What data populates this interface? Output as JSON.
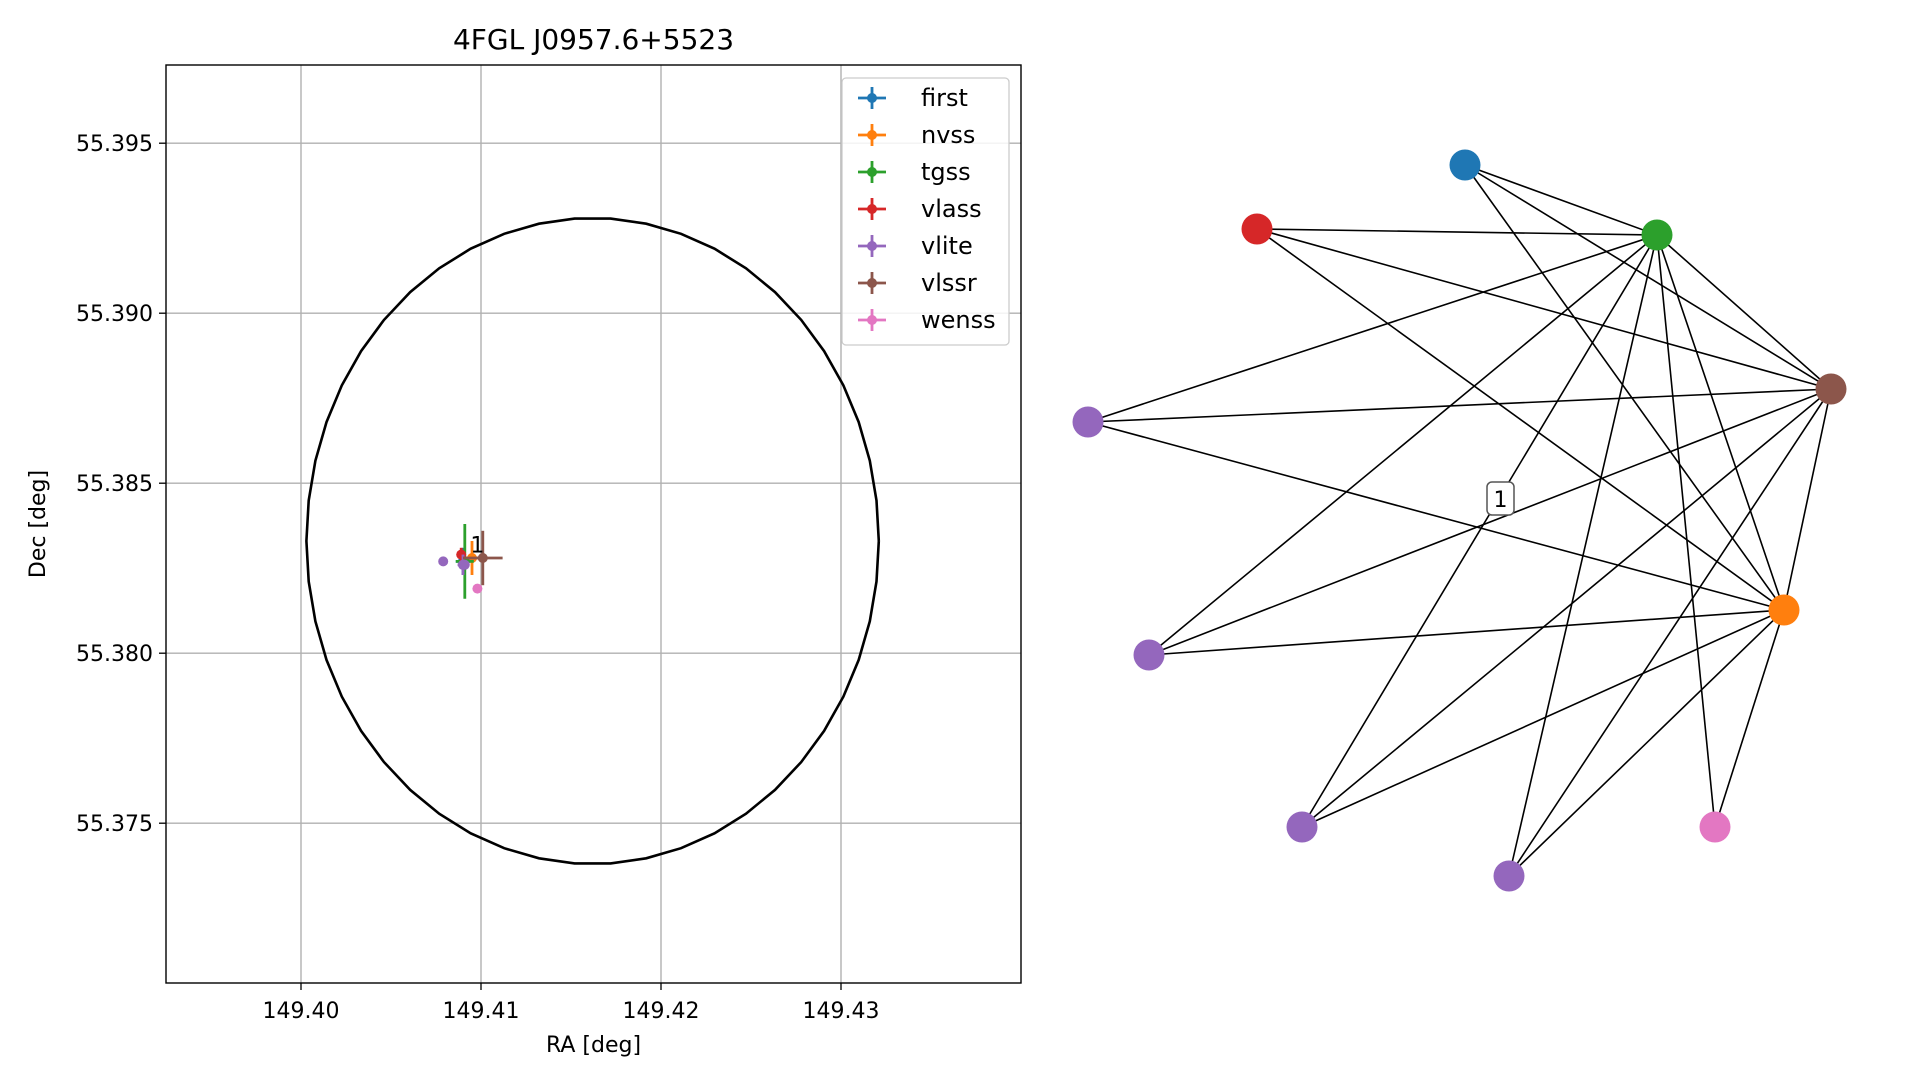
{
  "chart_data": [
    {
      "type": "scatter",
      "title": "4FGL J0957.6+5523",
      "xlabel": "RA [deg]",
      "ylabel": "Dec [deg]",
      "xlim": [
        149.3925,
        149.44
      ],
      "ylim": [
        55.3703,
        55.3973
      ],
      "xticks": [
        "149.40",
        "149.41",
        "149.42",
        "149.43"
      ],
      "yticks": [
        "55.375",
        "55.380",
        "55.385",
        "55.390",
        "55.395"
      ],
      "grid": true,
      "legend_position": "upper-right",
      "error_ellipse": {
        "center": [
          149.4162,
          55.3833
        ],
        "semi_axis_ra": 0.0159,
        "semi_axis_dec": 0.0095,
        "color": "#000000"
      },
      "group_label": "1",
      "group_label_position": [
        149.4098,
        55.3832
      ],
      "series": [
        {
          "name": "first",
          "color": "#1f77b4",
          "points": [
            {
              "x": 149.409,
              "y": 55.3827,
              "xerr": 0.0004,
              "yerr": 0.0004
            }
          ]
        },
        {
          "name": "nvss",
          "color": "#ff7f0e",
          "points": [
            {
              "x": 149.4095,
              "y": 55.3828,
              "xerr": 0.0005,
              "yerr": 0.0005
            }
          ]
        },
        {
          "name": "tgss",
          "color": "#2ca02c",
          "points": [
            {
              "x": 149.4091,
              "y": 55.3827,
              "xerr": 0.0005,
              "yerr": 0.0011
            }
          ]
        },
        {
          "name": "vlass",
          "color": "#d62728",
          "points": [
            {
              "x": 149.4089,
              "y": 55.3829,
              "xerr": 0.0002,
              "yerr": 0.0002
            }
          ]
        },
        {
          "name": "vlite",
          "color": "#9467bd",
          "points": [
            {
              "x": 149.4079,
              "y": 55.3827,
              "xerr": 0.0001,
              "yerr": 0.0001
            },
            {
              "x": 149.4091,
              "y": 55.3826,
              "xerr": 0.0001,
              "yerr": 0.0001
            },
            {
              "x": 149.409,
              "y": 55.3826,
              "xerr": 0.0003,
              "yerr": 0.0003
            },
            {
              "x": 149.409,
              "y": 55.3826,
              "xerr": 0.0001,
              "yerr": 0.0001
            }
          ]
        },
        {
          "name": "vlssr",
          "color": "#8c564b",
          "points": [
            {
              "x": 149.4101,
              "y": 55.3828,
              "xerr": 0.0011,
              "yerr": 0.0008
            }
          ]
        },
        {
          "name": "wenss",
          "color": "#e377c2",
          "points": [
            {
              "x": 149.4098,
              "y": 55.3819,
              "xerr": 0.0001,
              "yerr": 0.0001
            }
          ]
        }
      ]
    },
    {
      "type": "network",
      "edge_color": "#000000",
      "edge_label": "1",
      "nodes": [
        {
          "id": "first",
          "color": "#1f77b4"
        },
        {
          "id": "tgss",
          "color": "#2ca02c"
        },
        {
          "id": "vlass",
          "color": "#d62728"
        },
        {
          "id": "vlssr",
          "color": "#8c564b"
        },
        {
          "id": "vlite_1",
          "color": "#9467bd"
        },
        {
          "id": "nvss",
          "color": "#ff7f0e"
        },
        {
          "id": "vlite_2",
          "color": "#9467bd"
        },
        {
          "id": "vlite_3",
          "color": "#9467bd"
        },
        {
          "id": "vlite_4",
          "color": "#9467bd"
        },
        {
          "id": "wenss",
          "color": "#e377c2"
        }
      ],
      "edges": [
        [
          "first",
          "tgss"
        ],
        [
          "first",
          "vlssr"
        ],
        [
          "first",
          "nvss"
        ],
        [
          "vlass",
          "tgss"
        ],
        [
          "vlass",
          "vlssr"
        ],
        [
          "vlass",
          "nvss"
        ],
        [
          "tgss",
          "vlite_1"
        ],
        [
          "tgss",
          "vlssr"
        ],
        [
          "tgss",
          "nvss"
        ],
        [
          "tgss",
          "vlite_2"
        ],
        [
          "tgss",
          "vlite_3"
        ],
        [
          "tgss",
          "vlite_4"
        ],
        [
          "tgss",
          "wenss"
        ],
        [
          "vlite_1",
          "vlssr"
        ],
        [
          "vlite_1",
          "nvss"
        ],
        [
          "vlssr",
          "nvss"
        ],
        [
          "vlssr",
          "vlite_2"
        ],
        [
          "vlssr",
          "vlite_3"
        ],
        [
          "vlssr",
          "vlite_4"
        ],
        [
          "nvss",
          "vlite_2"
        ],
        [
          "nvss",
          "vlite_3"
        ],
        [
          "nvss",
          "vlite_4"
        ],
        [
          "nvss",
          "wenss"
        ]
      ]
    }
  ]
}
